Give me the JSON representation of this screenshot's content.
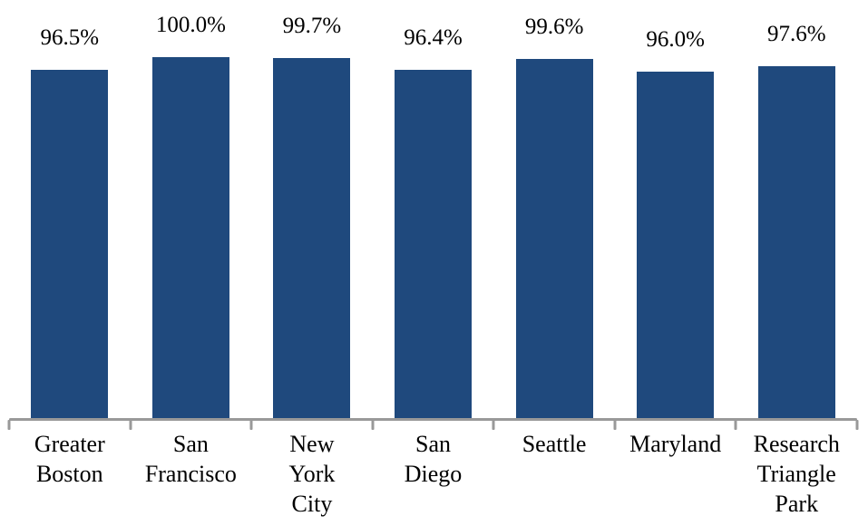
{
  "chart_data": {
    "type": "bar",
    "title": "",
    "xlabel": "",
    "ylabel": "",
    "categories": [
      "Greater Boston",
      "San Francisco",
      "New York City",
      "San Diego",
      "Seattle",
      "Maryland",
      "Research Triangle Park"
    ],
    "category_lines": [
      [
        "Greater",
        "Boston"
      ],
      [
        "San",
        "Francisco"
      ],
      [
        "New",
        "York",
        "City"
      ],
      [
        "San",
        "Diego"
      ],
      [
        "Seattle"
      ],
      [
        "Maryland"
      ],
      [
        "Research",
        "Triangle",
        "Park"
      ]
    ],
    "values": [
      96.5,
      100.0,
      99.7,
      96.4,
      99.6,
      96.0,
      97.6
    ],
    "value_labels": [
      "96.5%",
      "100.0%",
      "99.7%",
      "96.4%",
      "99.6%",
      "96.0%",
      "97.6%"
    ],
    "ylim": [
      0,
      100
    ],
    "grid": false,
    "legend": false,
    "legend_position": "none",
    "bar_color": "#1F497D",
    "axis_color": "#999999",
    "text_color": "#000000"
  }
}
